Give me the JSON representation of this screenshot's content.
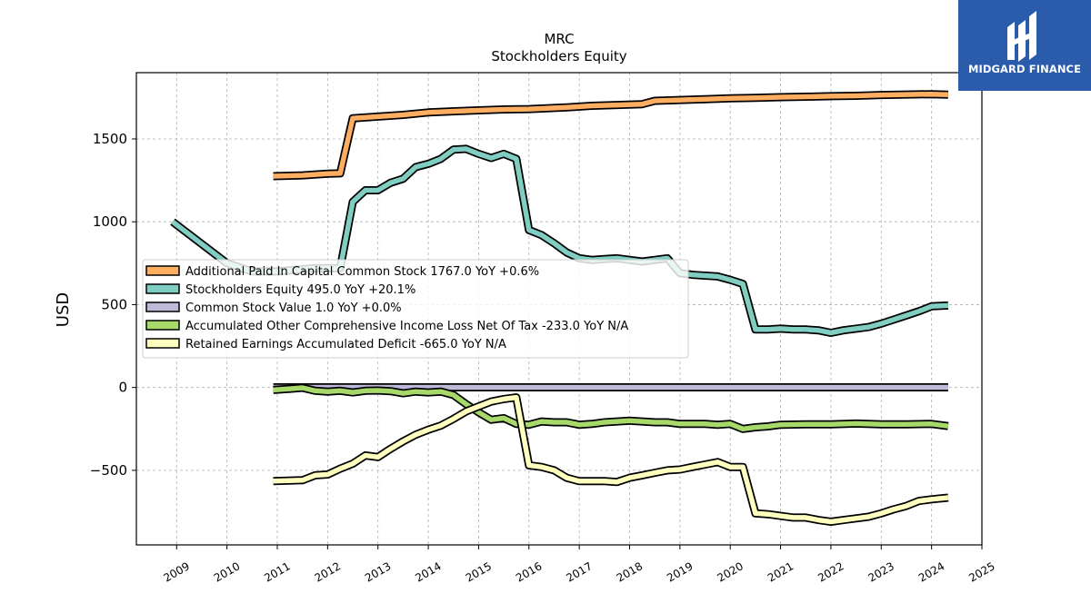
{
  "brand": {
    "logo_text": "MIDGARD FINANCE",
    "logo_bg": "#2a5cab"
  },
  "chart_data": {
    "type": "line",
    "title": "MRC",
    "subtitle": "Stockholders  Equity",
    "xlabel": "",
    "ylabel": "USD",
    "xlim": [
      2008.2,
      2025.0
    ],
    "ylim": [
      -950,
      1900
    ],
    "x_ticks": [
      "2009",
      "2010",
      "2011",
      "2012",
      "2013",
      "2014",
      "2015",
      "2016",
      "2017",
      "2018",
      "2019",
      "2020",
      "2021",
      "2022",
      "2023",
      "2024",
      "2025"
    ],
    "y_ticks": [
      -500,
      0,
      500,
      1000,
      1500
    ],
    "y_tick_labels": [
      "−500",
      "0",
      "500",
      "1000",
      "1500"
    ],
    "grid": true,
    "legend_position": "center-left",
    "series": [
      {
        "name": "Additional Paid In Capital Common Stock",
        "legend": "Additional Paid In Capital Common Stock  1767.0 YoY +0.6%",
        "color": "#fdae61",
        "x": [
          2010.92,
          2011.5,
          2012.0,
          2012.25,
          2012.5,
          2013.0,
          2013.5,
          2014.0,
          2014.75,
          2015.5,
          2016.0,
          2016.75,
          2017.25,
          2017.75,
          2018.25,
          2018.5,
          2019.0,
          2019.5,
          2020.0,
          2020.5,
          2021.0,
          2021.5,
          2022.0,
          2022.5,
          2023.0,
          2023.5,
          2024.0,
          2024.33
        ],
        "y": [
          1275,
          1280,
          1290,
          1292,
          1625,
          1635,
          1645,
          1660,
          1670,
          1678,
          1680,
          1690,
          1700,
          1705,
          1710,
          1730,
          1735,
          1740,
          1745,
          1748,
          1752,
          1755,
          1758,
          1760,
          1765,
          1768,
          1770,
          1767
        ]
      },
      {
        "name": "Stockholders Equity",
        "legend": "Stockholders Equity  495.0 YoY +20.1%",
        "color": "#80cdc1",
        "x": [
          2008.92,
          2010.0,
          2010.5,
          2011.0,
          2011.75,
          2012.25,
          2012.5,
          2012.75,
          2013.0,
          2013.25,
          2013.5,
          2013.75,
          2014.0,
          2014.25,
          2014.5,
          2014.75,
          2015.0,
          2015.25,
          2015.5,
          2015.75,
          2016.0,
          2016.25,
          2016.5,
          2016.75,
          2017.0,
          2017.25,
          2017.5,
          2017.75,
          2018.0,
          2018.25,
          2018.5,
          2018.75,
          2019.0,
          2019.25,
          2019.5,
          2019.75,
          2020.0,
          2020.25,
          2020.5,
          2020.75,
          2021.0,
          2021.25,
          2021.5,
          2021.75,
          2022.0,
          2022.25,
          2022.5,
          2022.75,
          2023.0,
          2023.25,
          2023.5,
          2023.75,
          2024.0,
          2024.33
        ],
        "y": [
          1000,
          750,
          700,
          700,
          720,
          720,
          1120,
          1190,
          1190,
          1235,
          1260,
          1330,
          1350,
          1380,
          1435,
          1440,
          1410,
          1385,
          1410,
          1380,
          950,
          920,
          870,
          815,
          780,
          770,
          775,
          780,
          770,
          760,
          770,
          780,
          690,
          680,
          675,
          670,
          650,
          625,
          350,
          350,
          355,
          350,
          350,
          345,
          330,
          345,
          355,
          365,
          385,
          410,
          435,
          460,
          490,
          495
        ]
      },
      {
        "name": "Common Stock Value",
        "legend": "Common Stock Value  1.0 YoY +0.0%",
        "color": "#bebada",
        "x": [
          2010.92,
          2024.33
        ],
        "y": [
          1,
          1
        ]
      },
      {
        "name": "Accumulated Other Comprehensive Income Loss Net Of Tax",
        "legend": "Accumulated Other Comprehensive Income Loss Net Of Tax  -233.0 YoY N/A",
        "color": "#a6d96a",
        "x": [
          2010.92,
          2011.25,
          2011.5,
          2011.75,
          2012.0,
          2012.25,
          2012.5,
          2012.75,
          2013.0,
          2013.25,
          2013.5,
          2013.75,
          2014.0,
          2014.25,
          2014.5,
          2014.75,
          2015.0,
          2015.25,
          2015.5,
          2015.75,
          2016.0,
          2016.25,
          2016.5,
          2016.75,
          2017.0,
          2017.25,
          2017.5,
          2017.75,
          2018.0,
          2018.25,
          2018.5,
          2018.75,
          2019.0,
          2019.25,
          2019.5,
          2019.75,
          2020.0,
          2020.25,
          2020.5,
          2020.75,
          2021.0,
          2021.5,
          2022.0,
          2022.5,
          2023.0,
          2023.5,
          2024.0,
          2024.33
        ],
        "y": [
          -15,
          -8,
          -2,
          -20,
          -25,
          -20,
          -30,
          -20,
          -18,
          -22,
          -35,
          -25,
          -30,
          -25,
          -45,
          -100,
          -150,
          -195,
          -185,
          -220,
          -225,
          -205,
          -210,
          -210,
          -225,
          -220,
          -210,
          -205,
          -200,
          -205,
          -210,
          -210,
          -220,
          -220,
          -220,
          -225,
          -220,
          -250,
          -240,
          -235,
          -225,
          -222,
          -222,
          -218,
          -222,
          -222,
          -220,
          -233
        ]
      },
      {
        "name": "Retained Earnings Accumulated Deficit",
        "legend": "Retained Earnings Accumulated Deficit  -665.0 YoY N/A",
        "color": "#ffffbf",
        "x": [
          2010.92,
          2011.5,
          2011.75,
          2012.0,
          2012.25,
          2012.5,
          2012.75,
          2013.0,
          2013.25,
          2013.5,
          2013.75,
          2014.0,
          2014.25,
          2014.5,
          2014.75,
          2015.0,
          2015.25,
          2015.5,
          2015.75,
          2016.0,
          2016.25,
          2016.5,
          2016.75,
          2017.0,
          2017.25,
          2017.5,
          2017.75,
          2018.0,
          2018.25,
          2018.5,
          2018.75,
          2019.0,
          2019.25,
          2019.5,
          2019.75,
          2020.0,
          2020.25,
          2020.5,
          2020.75,
          2021.0,
          2021.25,
          2021.5,
          2021.75,
          2022.0,
          2022.25,
          2022.5,
          2022.75,
          2023.0,
          2023.25,
          2023.5,
          2023.75,
          2024.0,
          2024.33
        ],
        "y": [
          -565,
          -560,
          -530,
          -525,
          -490,
          -460,
          -410,
          -420,
          -370,
          -325,
          -285,
          -255,
          -230,
          -190,
          -145,
          -115,
          -85,
          -70,
          -60,
          -470,
          -480,
          -500,
          -545,
          -565,
          -565,
          -565,
          -570,
          -545,
          -530,
          -515,
          -500,
          -495,
          -480,
          -465,
          -450,
          -480,
          -480,
          -760,
          -765,
          -775,
          -785,
          -785,
          -800,
          -810,
          -800,
          -790,
          -780,
          -760,
          -735,
          -715,
          -685,
          -675,
          -665
        ]
      }
    ]
  }
}
